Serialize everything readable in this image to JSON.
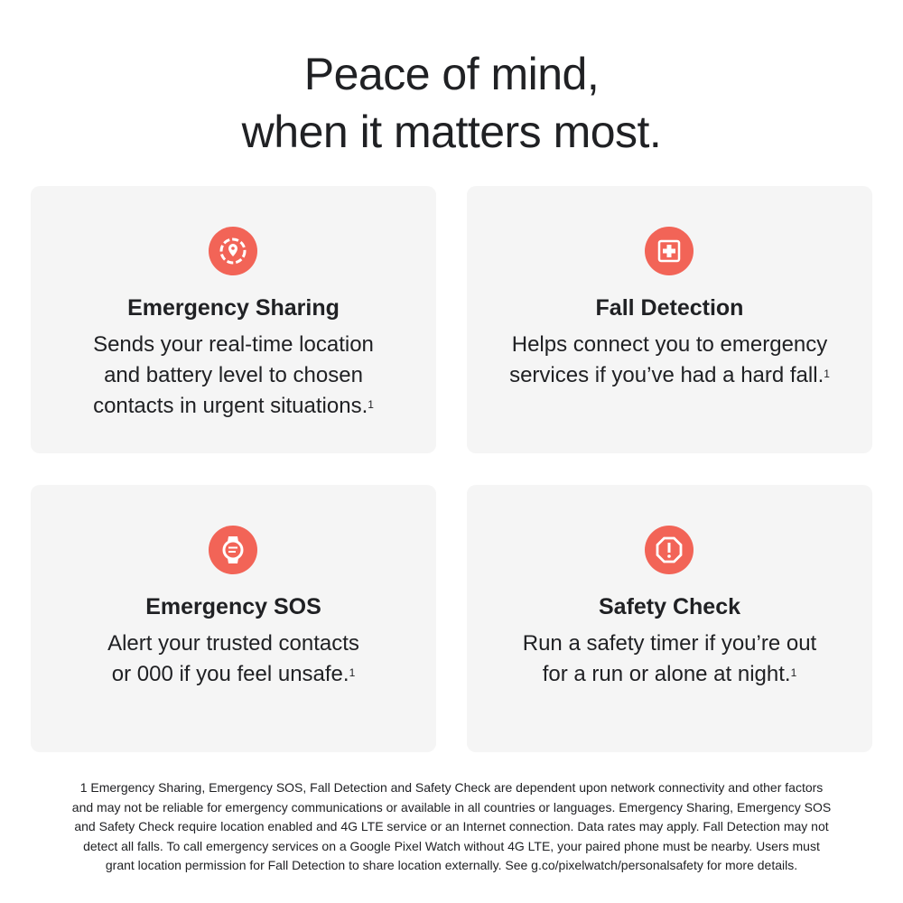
{
  "header": {
    "line1": "Peace of mind,",
    "line2": "when it matters most."
  },
  "accent_color": "#f26457",
  "cards": [
    {
      "icon": "location-sharing-icon",
      "title": "Emergency Sharing",
      "body": [
        "Sends your real-time location",
        "and battery level to chosen",
        "contacts in urgent situations."
      ],
      "footnote_ref": "1"
    },
    {
      "icon": "medical-cross-icon",
      "title": "Fall Detection",
      "body": [
        "Helps connect you to emergency",
        "services if you’ve had a hard fall."
      ],
      "footnote_ref": "1"
    },
    {
      "icon": "watch-icon",
      "title": "Emergency SOS",
      "body": [
        "Alert your trusted contacts",
        "or 000 if you feel unsafe."
      ],
      "footnote_ref": "1"
    },
    {
      "icon": "alert-octagon-icon",
      "title": "Safety Check",
      "body": [
        "Run a safety timer if you’re out",
        "for a run or alone at night."
      ],
      "footnote_ref": "1"
    }
  ],
  "footnote": [
    "1 Emergency Sharing, Emergency SOS, Fall Detection and Safety Check are dependent upon network connectivity and other factors",
    "and may not be reliable for emergency communications or available in all countries or languages. Emergency Sharing, Emergency SOS",
    "and Safety Check require location enabled and 4G LTE service or an Internet connection. Data rates may apply. Fall Detection may not",
    "detect all falls. To call emergency services on a Google Pixel Watch without 4G LTE, your paired phone must be nearby. Users must",
    "grant location permission for Fall Detection to share location externally. See g.co/pixelwatch/personalsafety for more details."
  ]
}
